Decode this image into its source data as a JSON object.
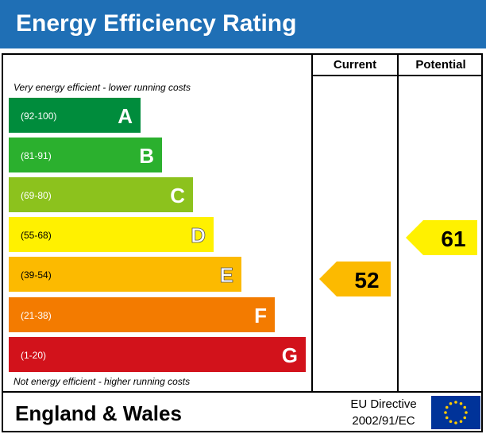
{
  "title": "Energy Efficiency Rating",
  "columns": {
    "current": "Current",
    "potential": "Potential"
  },
  "notes": {
    "top": "Very energy efficient - lower running costs",
    "bottom": "Not energy efficient - higher running costs"
  },
  "footer": {
    "region": "England & Wales",
    "directive_line1": "EU Directive",
    "directive_line2": "2002/91/EC",
    "flag_icon": "eu-flag-icon"
  },
  "chart_data": {
    "type": "bar",
    "bands": [
      {
        "letter": "A",
        "range": "(92-100)",
        "color": "#008c3c"
      },
      {
        "letter": "B",
        "range": "(81-91)",
        "color": "#2bb02e"
      },
      {
        "letter": "C",
        "range": "(69-80)",
        "color": "#8cc21d"
      },
      {
        "letter": "D",
        "range": "(55-68)",
        "color": "#fff100"
      },
      {
        "letter": "E",
        "range": "(39-54)",
        "color": "#fcba00"
      },
      {
        "letter": "F",
        "range": "(21-38)",
        "color": "#f37b00"
      },
      {
        "letter": "G",
        "range": "(1-20)",
        "color": "#d2121b"
      }
    ],
    "current": {
      "value": 52,
      "band": "E",
      "color": "#fcba00"
    },
    "potential": {
      "value": 61,
      "band": "D",
      "color": "#fff100"
    }
  }
}
